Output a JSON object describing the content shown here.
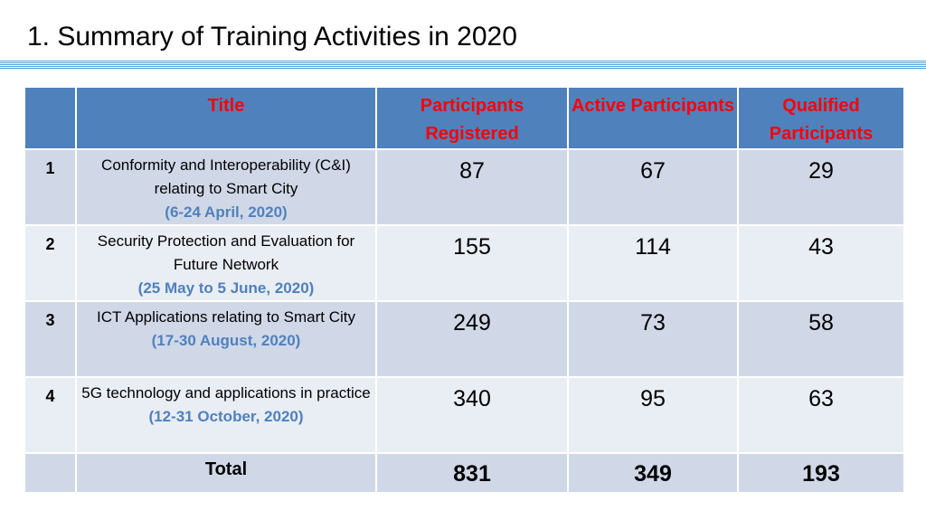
{
  "slide": {
    "title": "1. Summary of Training Activities in 2020"
  },
  "colors": {
    "header_fill": "#4f81bd",
    "header_text": "#ff0000",
    "row_dark": "#d0d8e8",
    "row_light": "#e9edf4",
    "date_text": "#4f81bd",
    "rule": "#4aa3d8"
  },
  "table": {
    "headers": {
      "index": "",
      "title": "Title",
      "registered": "Participants Registered",
      "active": "Active Participants",
      "qualified": "Qualified Participants"
    },
    "rows": [
      {
        "index": "1",
        "title": "Conformity and Interoperability (C&I) relating to Smart City",
        "date": "(6-24 April, 2020)",
        "registered": "87",
        "active": "67",
        "qualified": "29"
      },
      {
        "index": "2",
        "title": "Security Protection and Evaluation for Future Network",
        "date": "(25 May to 5 June, 2020)",
        "registered": "155",
        "active": "114",
        "qualified": "43"
      },
      {
        "index": "3",
        "title": "ICT Applications relating to Smart City",
        "date": "(17-30 August, 2020)",
        "registered": "249",
        "active": "73",
        "qualified": "58"
      },
      {
        "index": "4",
        "title": "5G technology and applications in practice",
        "date": "(12-31 October, 2020)",
        "registered": "340",
        "active": "95",
        "qualified": "63"
      }
    ],
    "total": {
      "label": "Total",
      "registered": "831",
      "active": "349",
      "qualified": "193"
    }
  }
}
